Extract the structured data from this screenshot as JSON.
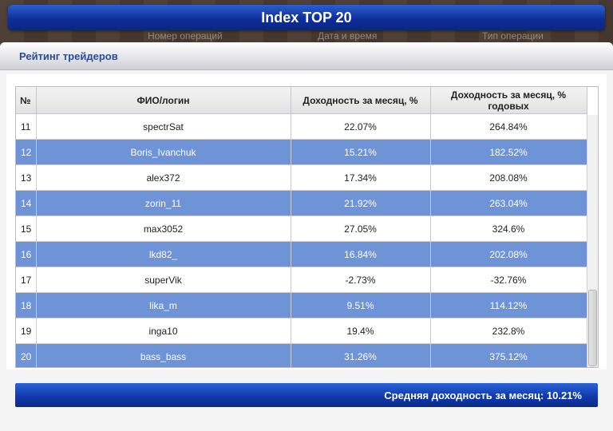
{
  "window": {
    "title": "Index TOP 20"
  },
  "background_headers": [
    "Номер операций",
    "Дата и время",
    "Тип операции"
  ],
  "panel": {
    "title": "Рейтинг трейдеров"
  },
  "table": {
    "columns": [
      "№",
      "ФИО/логин",
      "Доходность за месяц, %",
      "Доходность за месяц, % годовых"
    ],
    "rows": [
      {
        "num": "11",
        "login": "spectrSat",
        "monthly": "22.07%",
        "annual": "264.84%",
        "highlight": false
      },
      {
        "num": "12",
        "login": "Boris_Ivanchuk",
        "monthly": "15.21%",
        "annual": "182.52%",
        "highlight": true
      },
      {
        "num": "13",
        "login": "alex372",
        "monthly": "17.34%",
        "annual": "208.08%",
        "highlight": false
      },
      {
        "num": "14",
        "login": "zorin_11",
        "monthly": "21.92%",
        "annual": "263.04%",
        "highlight": true
      },
      {
        "num": "15",
        "login": "max3052",
        "monthly": "27.05%",
        "annual": "324.6%",
        "highlight": false
      },
      {
        "num": "16",
        "login": "lkd82_",
        "monthly": "16.84%",
        "annual": "202.08%",
        "highlight": true
      },
      {
        "num": "17",
        "login": "superVik",
        "monthly": "-2.73%",
        "annual": "-32.76%",
        "highlight": false
      },
      {
        "num": "18",
        "login": "lika_m",
        "monthly": "9.51%",
        "annual": "114.12%",
        "highlight": true
      },
      {
        "num": "19",
        "login": "inga10",
        "monthly": "19.4%",
        "annual": "232.8%",
        "highlight": false
      },
      {
        "num": "20",
        "login": "bass_bass",
        "monthly": "31.26%",
        "annual": "375.12%",
        "highlight": true
      }
    ]
  },
  "footer": {
    "text": "Средняя доходность за месяц: 10.21%"
  },
  "colors": {
    "accent": "#0f36a8",
    "row_highlight": "#6e93d6",
    "panel_title": "#2a4c98"
  }
}
